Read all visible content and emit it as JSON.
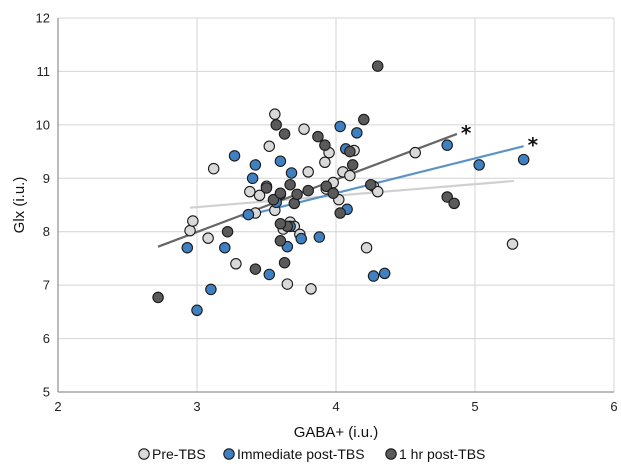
{
  "chart_data": {
    "type": "scatter",
    "title": "",
    "xlabel": "GABA+ (i.u.)",
    "ylabel": "Glx (i.u.)",
    "xlim": [
      2,
      6
    ],
    "ylim": [
      5,
      12
    ],
    "xticks": [
      "2",
      "3",
      "4",
      "5",
      "6"
    ],
    "yticks": [
      "5",
      "6",
      "7",
      "8",
      "9",
      "10",
      "11",
      "12"
    ],
    "grid": true,
    "legend_position": "bottom",
    "annotations": [
      {
        "text": "*",
        "series": "1 hr post-TBS"
      },
      {
        "text": "*",
        "series": "Immediate post-TBS"
      }
    ],
    "series": [
      {
        "name": "Pre-TBS",
        "color": "#d9d9d9",
        "trend_color": "#d0d0d0",
        "trendline": [
          [
            2.95,
            8.45
          ],
          [
            5.28,
            8.95
          ]
        ],
        "points": [
          [
            2.95,
            8.02
          ],
          [
            2.97,
            8.2
          ],
          [
            3.08,
            7.88
          ],
          [
            3.12,
            9.18
          ],
          [
            3.28,
            7.4
          ],
          [
            3.38,
            8.75
          ],
          [
            3.42,
            8.35
          ],
          [
            3.45,
            8.68
          ],
          [
            3.5,
            8.85
          ],
          [
            3.52,
            9.6
          ],
          [
            3.56,
            10.2
          ],
          [
            3.6,
            8.7
          ],
          [
            3.62,
            8.05
          ],
          [
            3.65,
            7.02
          ],
          [
            3.67,
            8.18
          ],
          [
            3.7,
            8.1
          ],
          [
            3.74,
            7.95
          ],
          [
            3.77,
            9.92
          ],
          [
            3.8,
            9.12
          ],
          [
            3.82,
            6.93
          ],
          [
            3.93,
            8.8
          ],
          [
            3.95,
            9.48
          ],
          [
            3.98,
            8.92
          ],
          [
            4.02,
            8.6
          ],
          [
            4.05,
            9.12
          ],
          [
            4.1,
            9.05
          ],
          [
            4.13,
            9.52
          ],
          [
            4.22,
            7.7
          ],
          [
            4.27,
            8.85
          ],
          [
            4.3,
            8.75
          ],
          [
            4.57,
            9.48
          ],
          [
            5.27,
            7.77
          ],
          [
            3.92,
            9.3
          ],
          [
            3.56,
            8.4
          ]
        ]
      },
      {
        "name": "Immediate post-TBS",
        "color": "#3f80c2",
        "trend_color": "#5b93c9",
        "trendline": [
          [
            3.32,
            8.28
          ],
          [
            5.35,
            9.6
          ]
        ],
        "points": [
          [
            2.93,
            7.7
          ],
          [
            3.0,
            6.53
          ],
          [
            3.1,
            6.92
          ],
          [
            3.2,
            7.7
          ],
          [
            3.27,
            9.42
          ],
          [
            3.37,
            8.32
          ],
          [
            3.4,
            9.0
          ],
          [
            3.42,
            9.25
          ],
          [
            3.52,
            7.2
          ],
          [
            3.57,
            8.55
          ],
          [
            3.6,
            9.32
          ],
          [
            3.65,
            7.72
          ],
          [
            3.68,
            9.1
          ],
          [
            3.75,
            7.87
          ],
          [
            3.88,
            7.9
          ],
          [
            4.03,
            9.97
          ],
          [
            4.07,
            9.55
          ],
          [
            4.08,
            8.42
          ],
          [
            4.15,
            9.85
          ],
          [
            4.27,
            7.17
          ],
          [
            4.35,
            7.22
          ],
          [
            4.8,
            9.62
          ],
          [
            5.03,
            9.25
          ],
          [
            5.35,
            9.35
          ],
          [
            3.67,
            8.1
          ]
        ]
      },
      {
        "name": "1 hr post-TBS",
        "color": "#5a5a5a",
        "trend_color": "#666666",
        "trendline": [
          [
            2.72,
            7.72
          ],
          [
            4.87,
            9.83
          ]
        ],
        "points": [
          [
            2.72,
            6.77
          ],
          [
            3.22,
            8.0
          ],
          [
            3.42,
            7.3
          ],
          [
            3.5,
            8.82
          ],
          [
            3.55,
            8.6
          ],
          [
            3.57,
            10.0
          ],
          [
            3.6,
            8.72
          ],
          [
            3.6,
            7.83
          ],
          [
            3.63,
            9.83
          ],
          [
            3.63,
            7.42
          ],
          [
            3.65,
            8.1
          ],
          [
            3.67,
            8.88
          ],
          [
            3.7,
            8.53
          ],
          [
            3.72,
            8.7
          ],
          [
            3.8,
            8.77
          ],
          [
            3.87,
            9.78
          ],
          [
            3.92,
            9.62
          ],
          [
            3.93,
            8.85
          ],
          [
            3.98,
            8.72
          ],
          [
            4.03,
            8.35
          ],
          [
            4.1,
            9.5
          ],
          [
            4.12,
            9.25
          ],
          [
            4.2,
            10.1
          ],
          [
            4.25,
            8.88
          ],
          [
            4.3,
            11.1
          ],
          [
            4.8,
            8.65
          ],
          [
            4.85,
            8.53
          ],
          [
            3.6,
            8.15
          ]
        ]
      }
    ]
  }
}
